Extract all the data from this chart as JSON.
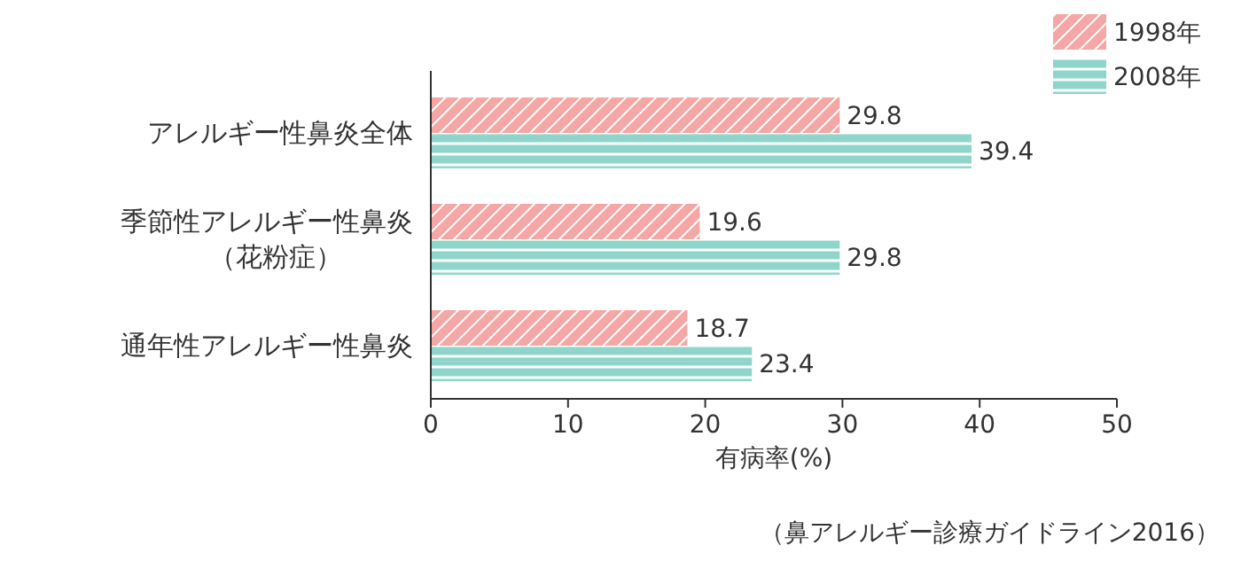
{
  "chart_data": {
    "type": "bar",
    "orientation": "horizontal",
    "categories": [
      "アレルギー性鼻炎全体",
      "季節性アレルギー性鼻炎（花粉症）",
      "通年性アレルギー性鼻炎"
    ],
    "series": [
      {
        "name": "1998年",
        "color": "#f4a7a5",
        "values": [
          29.8,
          19.6,
          18.7
        ]
      },
      {
        "name": "2008年",
        "color": "#8fd5cb",
        "values": [
          39.4,
          29.8,
          23.4
        ]
      }
    ],
    "xlabel": "有病率(%)",
    "xlim": [
      0,
      50
    ],
    "xticks": [
      0,
      10,
      20,
      30,
      40,
      50
    ],
    "data_labels": true,
    "legend": "top right",
    "grid": false,
    "annotations": [
      "（鼻アレルギー診療ガイドライン2016）"
    ]
  }
}
